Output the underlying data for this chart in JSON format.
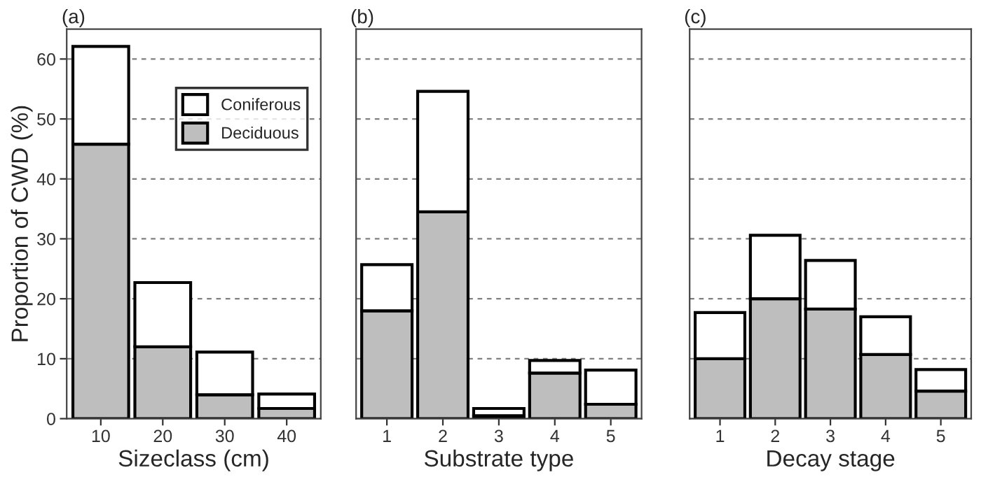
{
  "chart_data": [
    {
      "type": "bar",
      "title": "(a)",
      "xlabel": "Sizeclass (cm)",
      "ylabel": "Proportion of CWD (%)",
      "categories": [
        "10",
        "20",
        "30",
        "40"
      ],
      "stacked": true,
      "series": [
        {
          "name": "Deciduous",
          "color": "#bebebe",
          "values": [
            45.8,
            12.0,
            4.0,
            1.7
          ]
        },
        {
          "name": "Coniferous",
          "color": "#ffffff",
          "values": [
            16.3,
            10.7,
            7.1,
            2.4
          ]
        }
      ],
      "ylim": [
        0,
        65
      ],
      "yticks": [
        0,
        10,
        20,
        30,
        40,
        50,
        60
      ],
      "grid": "y",
      "legend": "top right"
    },
    {
      "type": "bar",
      "title": "(b)",
      "xlabel": "Substrate type",
      "categories": [
        "1",
        "2",
        "3",
        "4",
        "5"
      ],
      "stacked": true,
      "series": [
        {
          "color": "#bebebe",
          "values": [
            18.0,
            34.5,
            0.5,
            7.6,
            2.4
          ]
        },
        {
          "color": "#ffffff",
          "values": [
            7.7,
            20.1,
            1.2,
            2.1,
            5.7
          ]
        }
      ],
      "ylim": [
        0,
        65
      ],
      "yticks": [
        0,
        10,
        20,
        30,
        40,
        50,
        60
      ],
      "grid": "y",
      "tick_labels": "x"
    },
    {
      "type": "bar",
      "title": "(c)",
      "xlabel": "Decay stage",
      "categories": [
        "1",
        "2",
        "3",
        "4",
        "5"
      ],
      "stacked": true,
      "series": [
        {
          "color": "#bebebe",
          "values": [
            10.0,
            20.0,
            18.3,
            10.7,
            4.6
          ]
        },
        {
          "color": "#ffffff",
          "values": [
            7.7,
            10.6,
            8.1,
            6.3,
            3.6
          ]
        }
      ],
      "ylim": [
        0,
        65
      ],
      "yticks": [
        0,
        10,
        20,
        30,
        40,
        50,
        60
      ],
      "grid": "y",
      "tick_labels": "x"
    }
  ]
}
